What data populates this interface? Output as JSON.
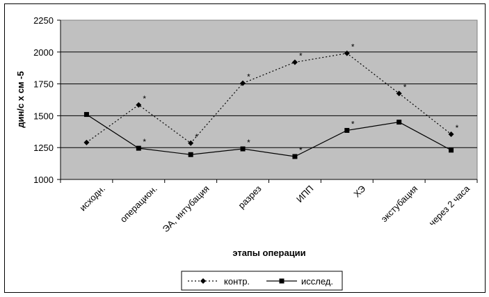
{
  "chart_data": {
    "type": "line",
    "xlabel": "этапы операции",
    "ylabel": "дин/с х см -5",
    "ylim": [
      1000,
      2250
    ],
    "yticks": [
      1000,
      1250,
      1500,
      1750,
      2000,
      2250
    ],
    "grid": true,
    "plot_background": "#c0c0c0",
    "legend_position": "bottom",
    "categories": [
      "исходн.",
      "операцион.",
      "ЭА, интубация",
      "разрез",
      "ИПП",
      "ХЭ",
      "экстубация",
      "через 2 часа"
    ],
    "series": [
      {
        "name": "контр.",
        "style": "dotted",
        "marker": "diamond",
        "color": "#000000",
        "values": [
          1290,
          1585,
          1285,
          1755,
          1920,
          1990,
          1675,
          1355
        ],
        "annotations": [
          "",
          "*",
          "*",
          "*",
          "*",
          "*",
          "*",
          "*"
        ]
      },
      {
        "name": "исслед.",
        "style": "solid",
        "marker": "square",
        "color": "#000000",
        "values": [
          1510,
          1245,
          1195,
          1240,
          1180,
          1385,
          1450,
          1230
        ],
        "annotations": [
          "",
          "*",
          "",
          "*",
          "*",
          "*",
          "",
          ""
        ]
      }
    ]
  }
}
